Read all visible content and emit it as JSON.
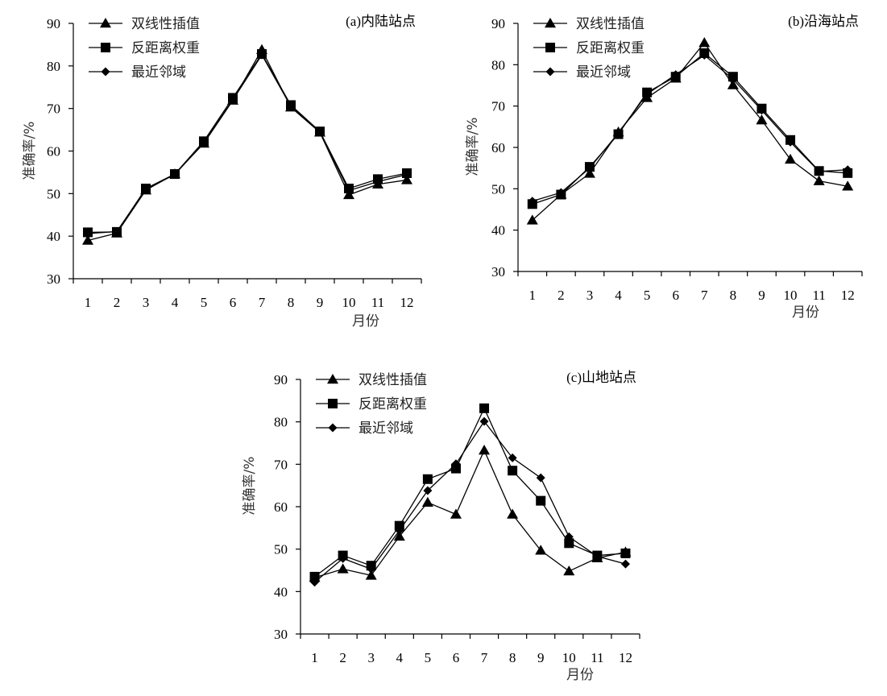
{
  "chart_data": [
    {
      "type": "line",
      "title": "(a)内陆站点",
      "xlabel": "月份",
      "ylabel": "准确率/%",
      "ylim": [
        30,
        90
      ],
      "yticks": [
        30,
        40,
        50,
        60,
        70,
        80,
        90
      ],
      "categories": [
        "1",
        "2",
        "3",
        "4",
        "5",
        "6",
        "7",
        "8",
        "9",
        "10",
        "11",
        "12"
      ],
      "legend_position": "top-left",
      "series": [
        {
          "name": "双线性插值",
          "marker": "triangle",
          "values": [
            39.0,
            40.7,
            50.8,
            54.6,
            61.8,
            71.9,
            83.8,
            70.3,
            64.4,
            49.7,
            52.2,
            53.2
          ]
        },
        {
          "name": "反距离权重",
          "marker": "square",
          "values": [
            40.9,
            41.0,
            51.2,
            54.6,
            62.3,
            72.5,
            82.8,
            70.8,
            64.6,
            51.2,
            53.4,
            54.8
          ]
        },
        {
          "name": "最近邻域",
          "marker": "diamond",
          "values": [
            40.6,
            41.1,
            51.0,
            54.5,
            62.0,
            72.0,
            82.6,
            70.5,
            64.5,
            50.7,
            52.8,
            54.5
          ]
        }
      ]
    },
    {
      "type": "line",
      "title": "(b)沿海站点",
      "xlabel": "月份",
      "ylabel": "准确率/%",
      "ylim": [
        30,
        90
      ],
      "yticks": [
        30,
        40,
        50,
        60,
        70,
        80,
        90
      ],
      "categories": [
        "1",
        "2",
        "3",
        "4",
        "5",
        "6",
        "7",
        "8",
        "9",
        "10",
        "11",
        "12"
      ],
      "legend_position": "top-left",
      "series": [
        {
          "name": "双线性插值",
          "marker": "triangle",
          "values": [
            42.4,
            48.6,
            53.7,
            63.7,
            72.0,
            76.7,
            85.3,
            75.1,
            66.6,
            57.1,
            51.9,
            50.6
          ]
        },
        {
          "name": "反距离权重",
          "marker": "square",
          "values": [
            46.3,
            48.6,
            55.3,
            63.2,
            73.3,
            77.1,
            82.8,
            77.1,
            69.4,
            61.8,
            54.3,
            53.8
          ]
        },
        {
          "name": "最近邻域",
          "marker": "diamond",
          "values": [
            47.0,
            49.1,
            55.0,
            63.5,
            72.9,
            77.6,
            82.3,
            76.5,
            69.0,
            61.3,
            54.2,
            54.6
          ]
        }
      ]
    },
    {
      "type": "line",
      "title": "(c)山地站点",
      "xlabel": "月份",
      "ylabel": "准确率/%",
      "ylim": [
        30,
        90
      ],
      "yticks": [
        30,
        40,
        50,
        60,
        70,
        80,
        90
      ],
      "categories": [
        "1",
        "2",
        "3",
        "4",
        "5",
        "6",
        "7",
        "8",
        "9",
        "10",
        "11",
        "12"
      ],
      "legend_position": "top-left",
      "series": [
        {
          "name": "双线性插值",
          "marker": "triangle",
          "values": [
            43.3,
            45.3,
            43.8,
            53.0,
            61.0,
            58.2,
            73.3,
            58.2,
            49.7,
            44.8,
            47.9,
            49.3
          ]
        },
        {
          "name": "反距离权重",
          "marker": "square",
          "values": [
            43.5,
            48.5,
            46.1,
            55.5,
            66.5,
            69.0,
            83.2,
            68.5,
            61.4,
            51.4,
            48.5,
            49.0
          ]
        },
        {
          "name": "最近邻域",
          "marker": "diamond",
          "values": [
            42.2,
            47.8,
            45.3,
            54.4,
            63.8,
            70.1,
            80.1,
            71.5,
            66.8,
            52.9,
            48.3,
            46.5
          ]
        }
      ]
    }
  ]
}
